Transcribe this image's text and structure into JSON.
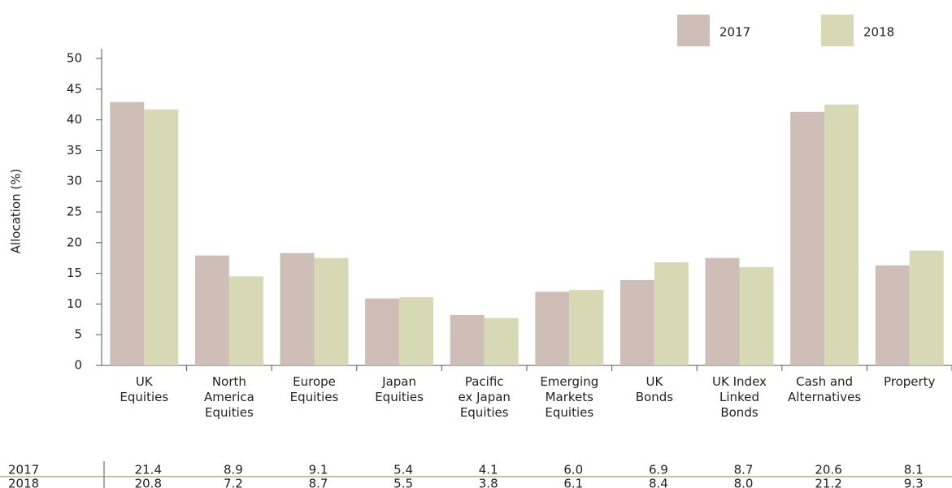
{
  "chart_data": {
    "type": "bar",
    "y_label": "Allocation (%)",
    "categories": [
      [
        "UK",
        "Equities"
      ],
      [
        "North",
        "America",
        "Equities"
      ],
      [
        "Europe",
        "Equities"
      ],
      [
        "Japan",
        "Equities"
      ],
      [
        "Pacific",
        "ex Japan",
        "Equities"
      ],
      [
        "Emerging",
        "Markets",
        "Equities"
      ],
      [
        "UK",
        "Bonds"
      ],
      [
        "UK Index",
        "Linked",
        "Bonds"
      ],
      [
        "Cash and",
        "Alternatives"
      ],
      [
        "Property"
      ]
    ],
    "series": [
      {
        "name": "2017",
        "color": "#cfbeb7",
        "values": [
          42.9,
          17.9,
          18.3,
          10.9,
          8.2,
          12.0,
          13.9,
          17.5,
          41.3,
          16.3
        ]
      },
      {
        "name": "2018",
        "color": "#d7d8b4",
        "values": [
          41.7,
          14.5,
          17.5,
          11.1,
          7.7,
          12.3,
          16.8,
          16.0,
          42.5,
          18.7
        ]
      }
    ],
    "ylim": [
      0,
      50
    ],
    "yticks": [
      0,
      5,
      10,
      15,
      20,
      25,
      30,
      35,
      40,
      45,
      50
    ],
    "grid": false
  },
  "table": {
    "rows": [
      {
        "label": "2017",
        "cells": [
          "21.4",
          "8.9",
          "9.1",
          "5.4",
          "4.1",
          "6.0",
          "6.9",
          "8.7",
          "20.6",
          "8.1"
        ]
      },
      {
        "label": "2018",
        "cells": [
          "20.8",
          "7.2",
          "8.7",
          "5.5",
          "3.8",
          "6.1",
          "8.4",
          "8.0",
          "21.2",
          "9.3"
        ]
      }
    ]
  }
}
